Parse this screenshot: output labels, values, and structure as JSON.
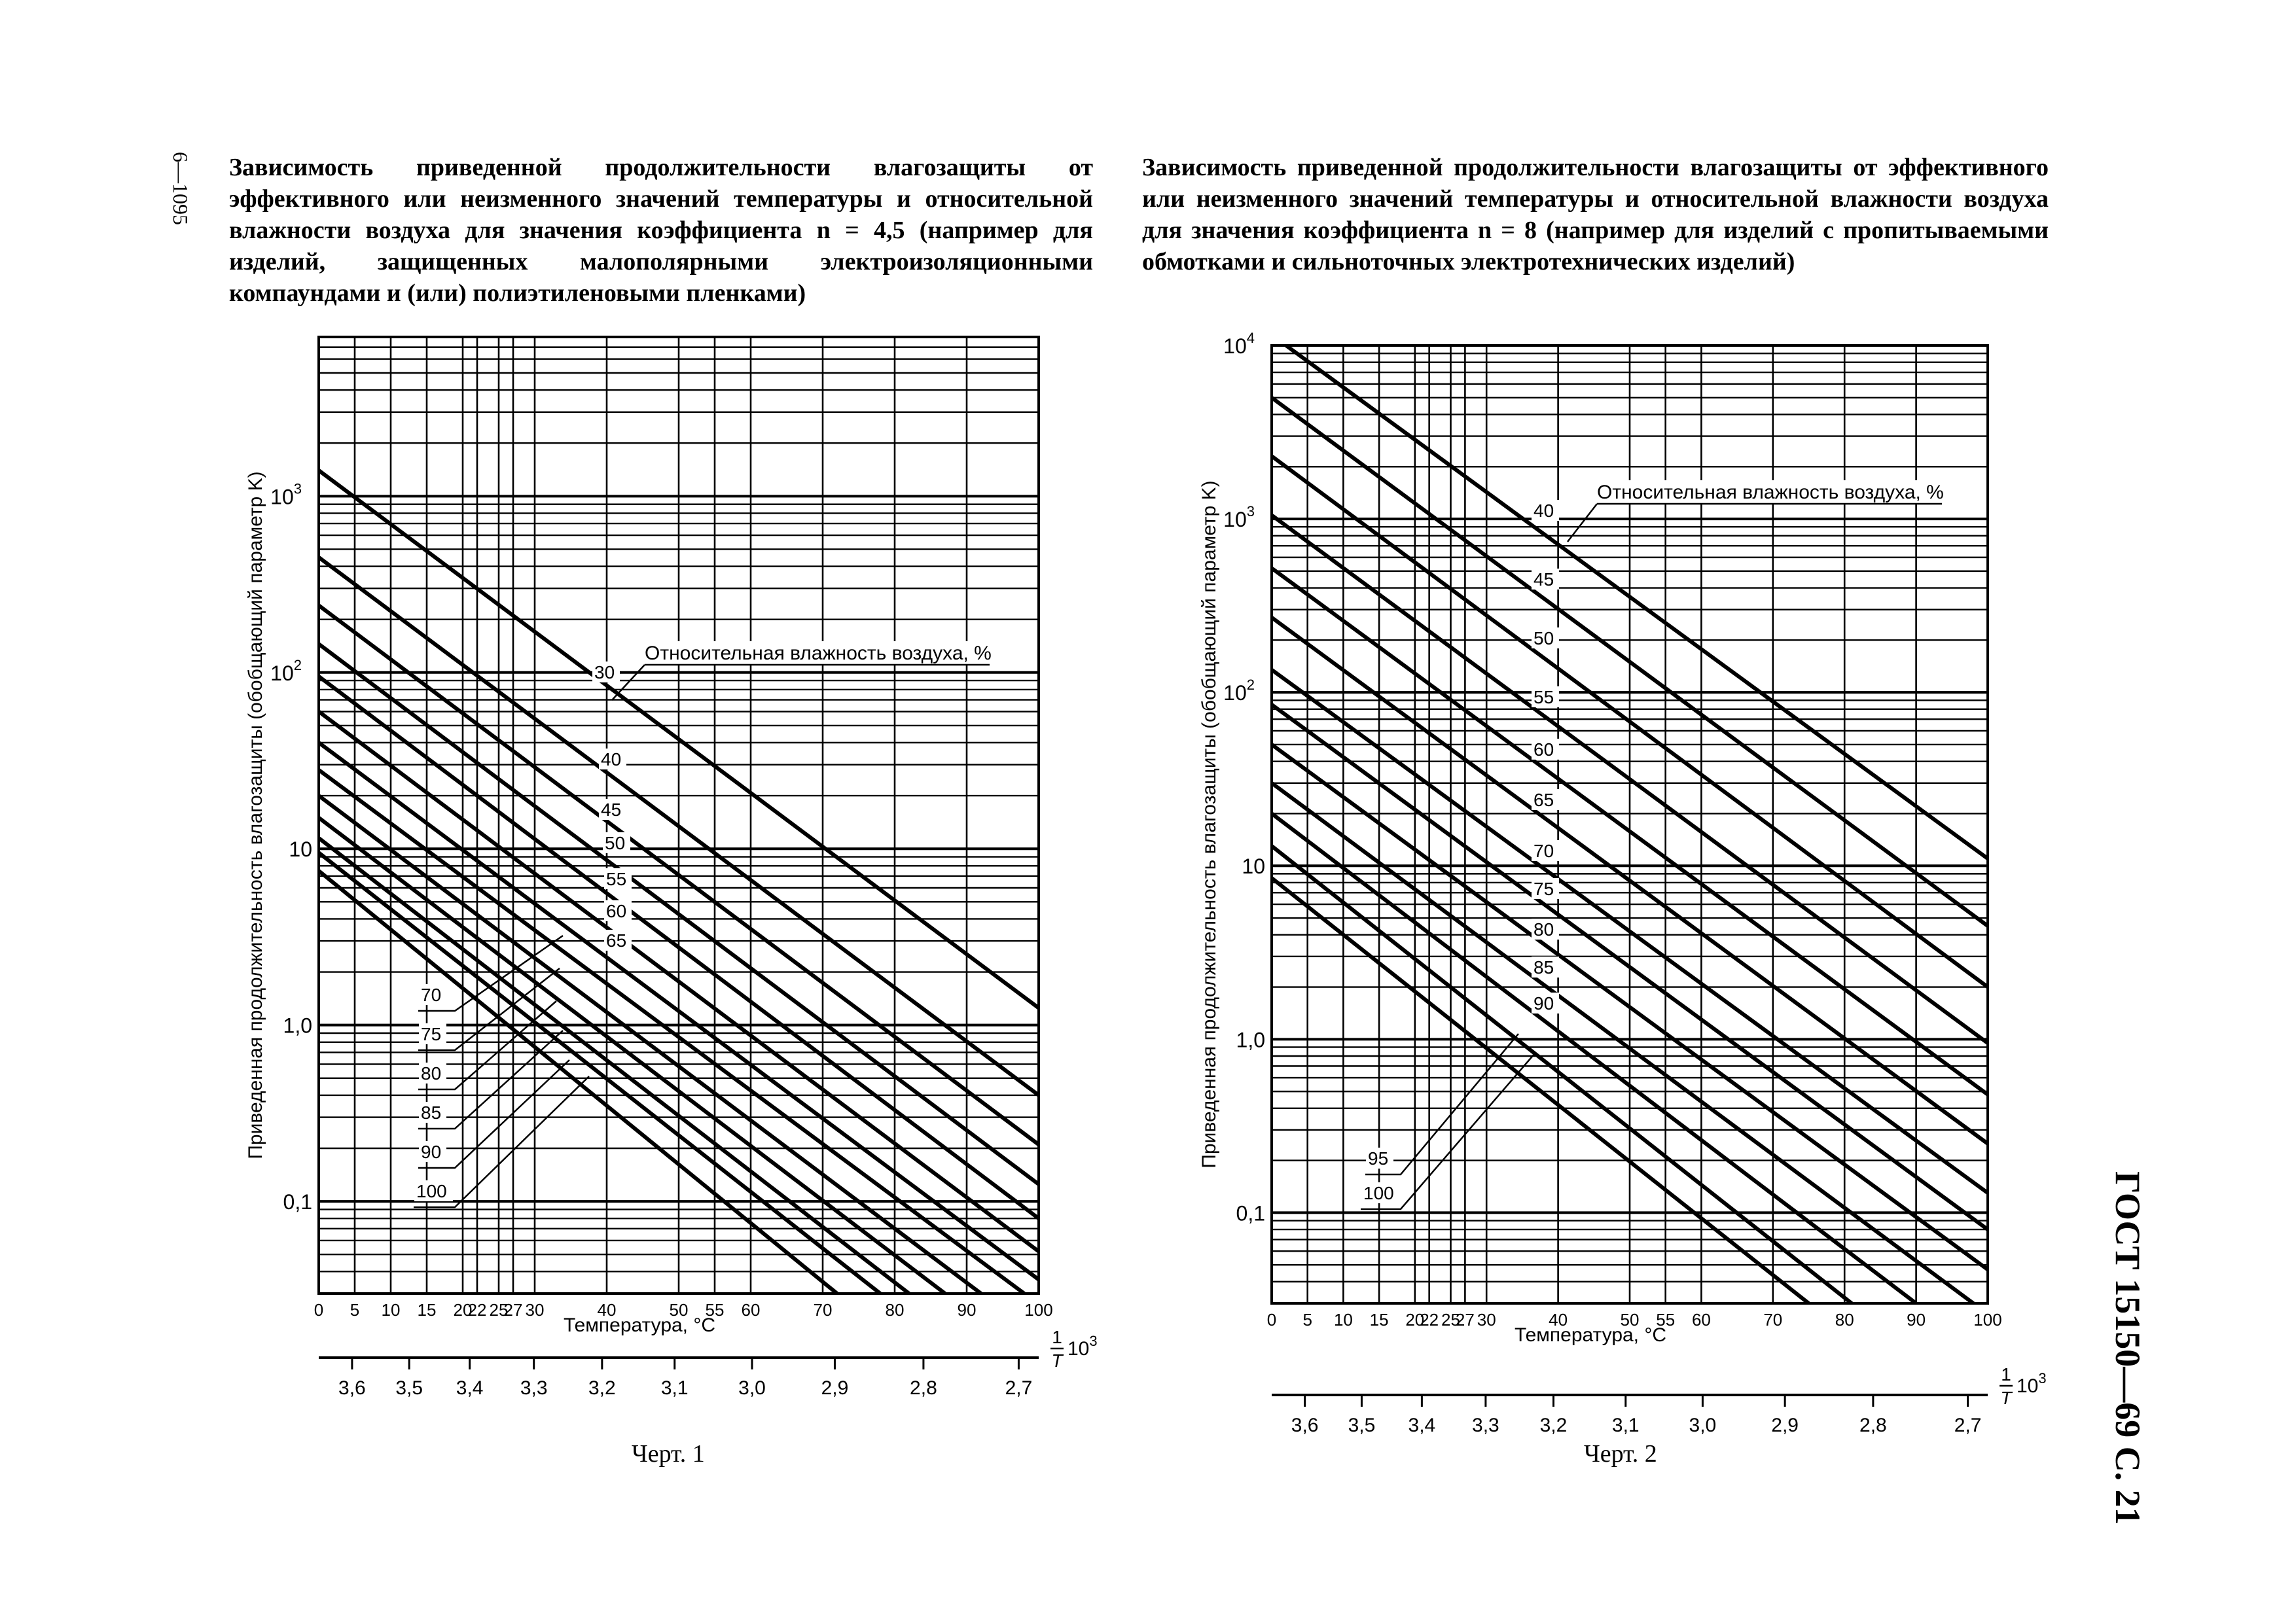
{
  "page": {
    "sheet_mark": "6—1095",
    "gost_label": "ГОСТ 15150—69 С. 21"
  },
  "chart_data": [
    {
      "type": "line",
      "caption": "Зависимость приведенной продолжительности влагозащиты от эффективного или неизменного значений температуры и относительной влажности воздуха для значения коэффициента n = 4,5 (например для изделий, защищенных малополярными электроизоляционными компаундами и (или) полиэтиленовыми пленками)",
      "figure_label": "Черт. 1",
      "ylabel": "Приведенная продолжительность влагозащиты (обобщающий параметр K)",
      "xlabel": "Температура, °C",
      "x2label_num": "1",
      "x2label_den": "T",
      "x2label_pow": "10",
      "x2label_exp": "3",
      "y_scale": "log",
      "ylim": [
        0.03,
        8000
      ],
      "xlim": [
        0,
        100
      ],
      "x_ticks": [
        0,
        5,
        10,
        15,
        20,
        22,
        25,
        27,
        30,
        40,
        50,
        55,
        60,
        70,
        80,
        90,
        100
      ],
      "y_ticks": [
        {
          "value": 0.1,
          "label": "0,1"
        },
        {
          "value": 1,
          "label": "1,0"
        },
        {
          "value": 10,
          "label": "10"
        },
        {
          "value": 100,
          "label": "10",
          "exp": "2"
        },
        {
          "value": 1000,
          "label": "10",
          "exp": "3"
        }
      ],
      "x2_ticks": [
        {
          "value": 3.6,
          "label": "3,6"
        },
        {
          "value": 3.5,
          "label": "3,5"
        },
        {
          "value": 3.4,
          "label": "3,4"
        },
        {
          "value": 3.3,
          "label": "3,3"
        },
        {
          "value": 3.2,
          "label": "3,2"
        },
        {
          "value": 3.1,
          "label": "3,1"
        },
        {
          "value": 3.0,
          "label": "3,0"
        },
        {
          "value": 2.9,
          "label": "2,9"
        },
        {
          "value": 2.8,
          "label": "2,8"
        },
        {
          "value": 2.7,
          "label": "2,7"
        }
      ],
      "legend_title": "Относительная влажность воздуха, %",
      "series": [
        {
          "name": "30",
          "x": [
            0,
            100
          ],
          "y": [
            1400,
            1.25
          ]
        },
        {
          "name": "40",
          "x": [
            0,
            100
          ],
          "y": [
            450,
            0.4
          ]
        },
        {
          "name": "45",
          "x": [
            0,
            100
          ],
          "y": [
            240,
            0.21
          ]
        },
        {
          "name": "50",
          "x": [
            0,
            100
          ],
          "y": [
            145,
            0.125
          ]
        },
        {
          "name": "55",
          "x": [
            0,
            100
          ],
          "y": [
            95,
            0.08
          ]
        },
        {
          "name": "60",
          "x": [
            0,
            100
          ],
          "y": [
            60,
            0.052
          ]
        },
        {
          "name": "65",
          "x": [
            0,
            100
          ],
          "y": [
            40,
            0.036
          ]
        },
        {
          "name": "70",
          "x": [
            0,
            98
          ],
          "y": [
            28,
            0.03
          ]
        },
        {
          "name": "75",
          "x": [
            0,
            92
          ],
          "y": [
            20,
            0.03
          ]
        },
        {
          "name": "80",
          "x": [
            0,
            87
          ],
          "y": [
            15,
            0.03
          ]
        },
        {
          "name": "85",
          "x": [
            0,
            82
          ],
          "y": [
            11.5,
            0.03
          ]
        },
        {
          "name": "90",
          "x": [
            0,
            78
          ],
          "y": [
            9.5,
            0.03
          ]
        },
        {
          "name": "100",
          "x": [
            0,
            72
          ],
          "y": [
            7.5,
            0.03
          ]
        }
      ]
    },
    {
      "type": "line",
      "caption": "Зависимость приведенной продолжительности влагозащиты от эффективного или неизменного значений температуры и относительной влажности воздуха для значения коэффициента n = 8 (например для изделий с пропитываемыми обмотками и сильноточных электротехнических изделий)",
      "figure_label": "Черт. 2",
      "ylabel": "Приведенная продолжительность влагозащиты (обобщающий параметр K)",
      "xlabel": "Температура, °C",
      "x2label_num": "1",
      "x2label_den": "T",
      "x2label_pow": "10",
      "x2label_exp": "3",
      "y_scale": "log",
      "ylim": [
        0.03,
        10000
      ],
      "xlim": [
        0,
        100
      ],
      "x_ticks": [
        0,
        5,
        10,
        15,
        20,
        22,
        25,
        27,
        30,
        40,
        50,
        55,
        60,
        70,
        80,
        90,
        100
      ],
      "y_ticks": [
        {
          "value": 0.1,
          "label": "0,1"
        },
        {
          "value": 1,
          "label": "1,0"
        },
        {
          "value": 10,
          "label": "10"
        },
        {
          "value": 100,
          "label": "10",
          "exp": "2"
        },
        {
          "value": 1000,
          "label": "10",
          "exp": "3"
        },
        {
          "value": 10000,
          "label": "10",
          "exp": "4"
        }
      ],
      "x2_ticks": [
        {
          "value": 3.6,
          "label": "3,6"
        },
        {
          "value": 3.5,
          "label": "3,5"
        },
        {
          "value": 3.4,
          "label": "3,4"
        },
        {
          "value": 3.3,
          "label": "3,3"
        },
        {
          "value": 3.2,
          "label": "3,2"
        },
        {
          "value": 3.1,
          "label": "3,1"
        },
        {
          "value": 3.0,
          "label": "3,0"
        },
        {
          "value": 2.9,
          "label": "2,9"
        },
        {
          "value": 2.8,
          "label": "2,8"
        },
        {
          "value": 2.7,
          "label": "2,7"
        }
      ],
      "legend_title": "Относительная влажность воздуха, %",
      "series": [
        {
          "name": "40",
          "x": [
            2,
            100
          ],
          "y": [
            10000,
            11
          ]
        },
        {
          "name": "45",
          "x": [
            0,
            100
          ],
          "y": [
            5000,
            4.5
          ]
        },
        {
          "name": "50",
          "x": [
            0,
            100
          ],
          "y": [
            2300,
            2
          ]
        },
        {
          "name": "55",
          "x": [
            0,
            100
          ],
          "y": [
            1050,
            0.95
          ]
        },
        {
          "name": "60",
          "x": [
            0,
            100
          ],
          "y": [
            520,
            0.48
          ]
        },
        {
          "name": "65",
          "x": [
            0,
            100
          ],
          "y": [
            270,
            0.25
          ]
        },
        {
          "name": "70",
          "x": [
            0,
            100
          ],
          "y": [
            135,
            0.13
          ]
        },
        {
          "name": "75",
          "x": [
            0,
            100
          ],
          "y": [
            85,
            0.08
          ]
        },
        {
          "name": "80",
          "x": [
            0,
            100
          ],
          "y": [
            50,
            0.047
          ]
        },
        {
          "name": "85",
          "x": [
            0,
            98
          ],
          "y": [
            30,
            0.03
          ]
        },
        {
          "name": "90",
          "x": [
            0,
            90
          ],
          "y": [
            20,
            0.03
          ]
        },
        {
          "name": "95",
          "x": [
            0,
            81
          ],
          "y": [
            13,
            0.03
          ]
        },
        {
          "name": "100",
          "x": [
            0,
            75
          ],
          "y": [
            8.5,
            0.03
          ]
        }
      ]
    }
  ]
}
